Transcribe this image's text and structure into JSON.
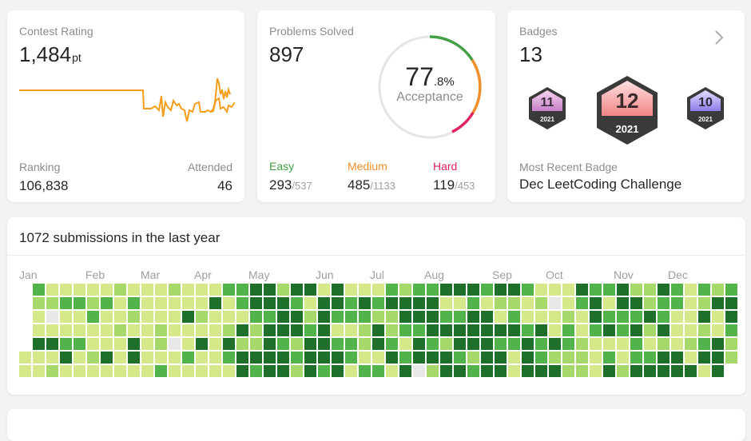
{
  "contest": {
    "title": "Contest Rating",
    "rating": "1,484",
    "unit": "pt",
    "ranking_label": "Ranking",
    "ranking": "106,838",
    "attended_label": "Attended",
    "attended": "46",
    "line_color": "#f59e1b"
  },
  "problems": {
    "title": "Problems Solved",
    "solved": "897",
    "acceptance_int": "77",
    "acceptance_dec": ".8%",
    "acceptance_label": "Acceptance",
    "easy": {
      "label": "Easy",
      "solved": "293",
      "total": "/537"
    },
    "medium": {
      "label": "Medium",
      "solved": "485",
      "total": "/1133"
    },
    "hard": {
      "label": "Hard",
      "solved": "119",
      "total": "/453"
    },
    "colors": {
      "easy": "#43a047",
      "medium": "#ef8f2a",
      "hard": "#e0245e"
    }
  },
  "badges": {
    "title": "Badges",
    "count": "13",
    "arrow_icon": "chevron-right-icon",
    "items": [
      {
        "number": "11",
        "year": "2021"
      },
      {
        "number": "12",
        "year": "2021"
      },
      {
        "number": "10",
        "year": "2021"
      }
    ],
    "recent_label": "Most Recent Badge",
    "recent_name": "Dec LeetCoding Challenge"
  },
  "submissions": {
    "title": "1072 submissions in the last year",
    "months": [
      "Jan",
      "Feb",
      "Mar",
      "Apr",
      "May",
      "Jun",
      "Jul",
      "Aug",
      "Sep",
      "Oct",
      "Nov",
      "Dec"
    ],
    "palette": [
      "#e8e8e8",
      "#d5e98b",
      "#a6d96a",
      "#52b34a",
      "#1e6f2a"
    ]
  }
}
